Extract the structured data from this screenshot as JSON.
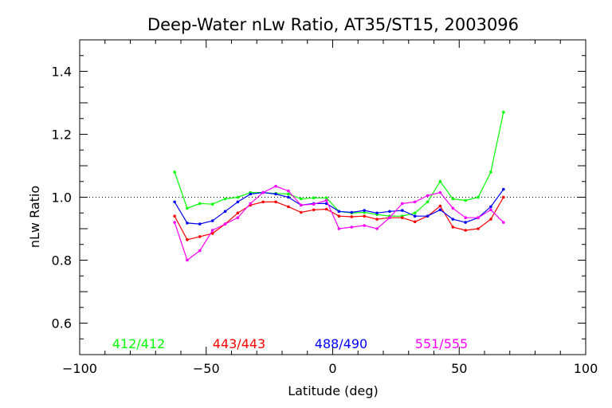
{
  "chart_data": {
    "type": "line",
    "title": "Deep-Water nLw Ratio, AT35/ST15, 2003096",
    "xlabel": "Latitude (deg)",
    "ylabel": "nLw Ratio",
    "xlim": [
      -100,
      100
    ],
    "ylim": [
      0.5,
      1.5
    ],
    "xticks": [
      -100,
      -50,
      0,
      50,
      100
    ],
    "xtick_labels": [
      "−100",
      "−50",
      "0",
      "50",
      "100"
    ],
    "yticks": [
      0.6,
      0.8,
      1.0,
      1.2,
      1.4
    ],
    "ytick_labels": [
      "0.6",
      "0.8",
      "1.0",
      "1.2",
      "1.4"
    ],
    "reference_line": 1.0,
    "grid": false,
    "legend_placement": "bottom (inside plot, horizontal)",
    "x": [
      -62.5,
      -57.5,
      -52.5,
      -47.5,
      -42.5,
      -37.5,
      -32.5,
      -27.5,
      -22.5,
      -17.5,
      -12.5,
      -7.5,
      -2.5,
      2.5,
      7.5,
      12.5,
      17.5,
      22.5,
      27.5,
      32.5,
      37.5,
      42.5,
      47.5,
      52.5,
      57.5,
      62.5,
      67.5
    ],
    "series": [
      {
        "name": "412/412",
        "color": "#00ff00",
        "values": [
          1.08,
          0.965,
          0.98,
          0.978,
          0.995,
          1.0,
          1.015,
          1.015,
          1.012,
          1.01,
          0.995,
          0.998,
          0.998,
          0.955,
          0.95,
          0.952,
          0.945,
          0.94,
          0.94,
          0.95,
          0.985,
          1.05,
          0.995,
          0.99,
          1.0,
          1.08,
          1.27
        ]
      },
      {
        "name": "443/443",
        "color": "#ff0000",
        "values": [
          0.94,
          0.865,
          0.875,
          0.885,
          0.915,
          0.95,
          0.975,
          0.985,
          0.985,
          0.97,
          0.952,
          0.96,
          0.962,
          0.94,
          0.938,
          0.94,
          0.93,
          0.935,
          0.935,
          0.922,
          0.94,
          0.972,
          0.905,
          0.895,
          0.9,
          0.93,
          1.0
        ]
      },
      {
        "name": "488/490",
        "color": "#0000ff",
        "values": [
          0.985,
          0.918,
          0.915,
          0.925,
          0.955,
          0.985,
          1.01,
          1.015,
          1.01,
          1.0,
          0.975,
          0.98,
          0.98,
          0.955,
          0.952,
          0.958,
          0.95,
          0.955,
          0.958,
          0.94,
          0.94,
          0.96,
          0.93,
          0.92,
          0.935,
          0.97,
          1.025
        ]
      },
      {
        "name": "551/555",
        "color": "#ff00ff",
        "values": [
          0.92,
          0.8,
          0.83,
          0.895,
          0.915,
          0.935,
          0.98,
          1.015,
          1.035,
          1.02,
          0.975,
          0.978,
          0.99,
          0.9,
          0.905,
          0.91,
          0.9,
          0.935,
          0.98,
          0.985,
          1.005,
          1.015,
          0.965,
          0.935,
          0.935,
          0.96,
          0.92
        ]
      }
    ]
  }
}
